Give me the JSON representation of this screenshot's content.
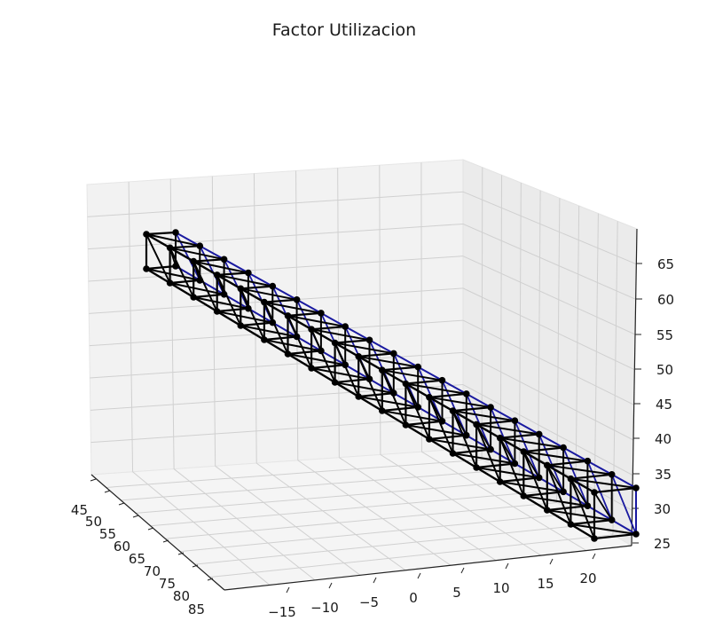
{
  "chart_data": {
    "type": "3d-line",
    "title": "Factor Utilizacion",
    "xlabel": "",
    "ylabel": "",
    "zlabel": "",
    "grid": true,
    "x_ticks": [
      "−15",
      "−10",
      "−5",
      "0",
      "5",
      "10",
      "15",
      "20"
    ],
    "y_ticks": [
      "45",
      "50",
      "55",
      "60",
      "65",
      "70",
      "75",
      "80",
      "85"
    ],
    "z_ticks": [
      "25",
      "30",
      "35",
      "40",
      "45",
      "50",
      "55",
      "60",
      "65"
    ],
    "series": [
      {
        "color": "#000000",
        "description": "truss members and nodes",
        "chord_top_left": {
          "x": [
            -17.5,
            19.5
          ],
          "y": [
            45,
            85
          ],
          "z": [
            62,
            31
          ]
        },
        "chord_bottom_left": {
          "x": [
            -17.5,
            19.5
          ],
          "y": [
            45,
            85
          ],
          "z": [
            57,
            27
          ]
        },
        "chord_top_right": {
          "x": [
            -14.5,
            23.5
          ],
          "y": [
            45,
            85
          ],
          "z": [
            62,
            31
          ]
        },
        "chord_bottom_right": {
          "x": [
            -14.5,
            23.5
          ],
          "y": [
            45,
            85
          ],
          "z": [
            57,
            27
          ]
        },
        "panels": 19
      },
      {
        "color": "#1a1aa0",
        "description": "highlighted members (far chords and some diagonals)"
      }
    ]
  }
}
